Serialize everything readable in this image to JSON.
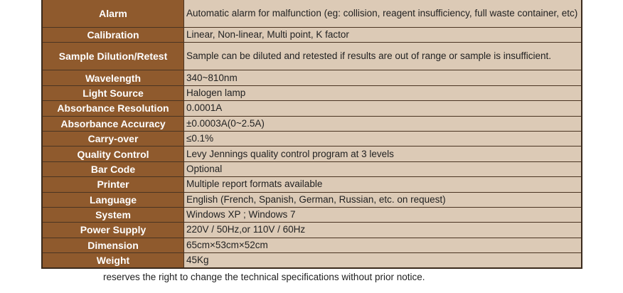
{
  "specs": [
    {
      "label": "Alarm",
      "value": "Automatic alarm for malfunction (eg: collision, reagent insufficiency, full waste container, etc)"
    },
    {
      "label": "Calibration",
      "value": "Linear, Non-linear, Multi point, K factor"
    },
    {
      "label": "Sample Dilution/Retest",
      "value": "Sample can be diluted and retested if results are out of range or sample is insufficient."
    },
    {
      "label": "Wavelength",
      "value": "340~810nm"
    },
    {
      "label": "Light Source",
      "value": "Halogen lamp"
    },
    {
      "label": "Absorbance Resolution",
      "value": "0.0001A"
    },
    {
      "label": "Absorbance Accuracy",
      "value": "±0.0003A(0~2.5A)"
    },
    {
      "label": "Carry-over",
      "value": "≤0.1%"
    },
    {
      "label": "Quality Control",
      "value": "Levy Jennings quality control program at 3 levels"
    },
    {
      "label": "Bar Code",
      "value": "Optional"
    },
    {
      "label": "Printer",
      "value": "Multiple report formats available"
    },
    {
      "label": "Language",
      "value": "English (French, Spanish, German, Russian, etc. on request)"
    },
    {
      "label": "System",
      "value": "Windows XP ; Windows 7"
    },
    {
      "label": "Power Supply",
      "value": "220V / 50Hz,or 110V / 60Hz"
    },
    {
      "label": "Dimension",
      "value": "65cm×53cm×52cm"
    },
    {
      "label": "Weight",
      "value": "45Kg"
    }
  ],
  "footnote": "reserves the right to change the technical specifications without prior notice.",
  "colors": {
    "label_bg": "#8f5a2d",
    "value_bg": "#dccab6"
  }
}
